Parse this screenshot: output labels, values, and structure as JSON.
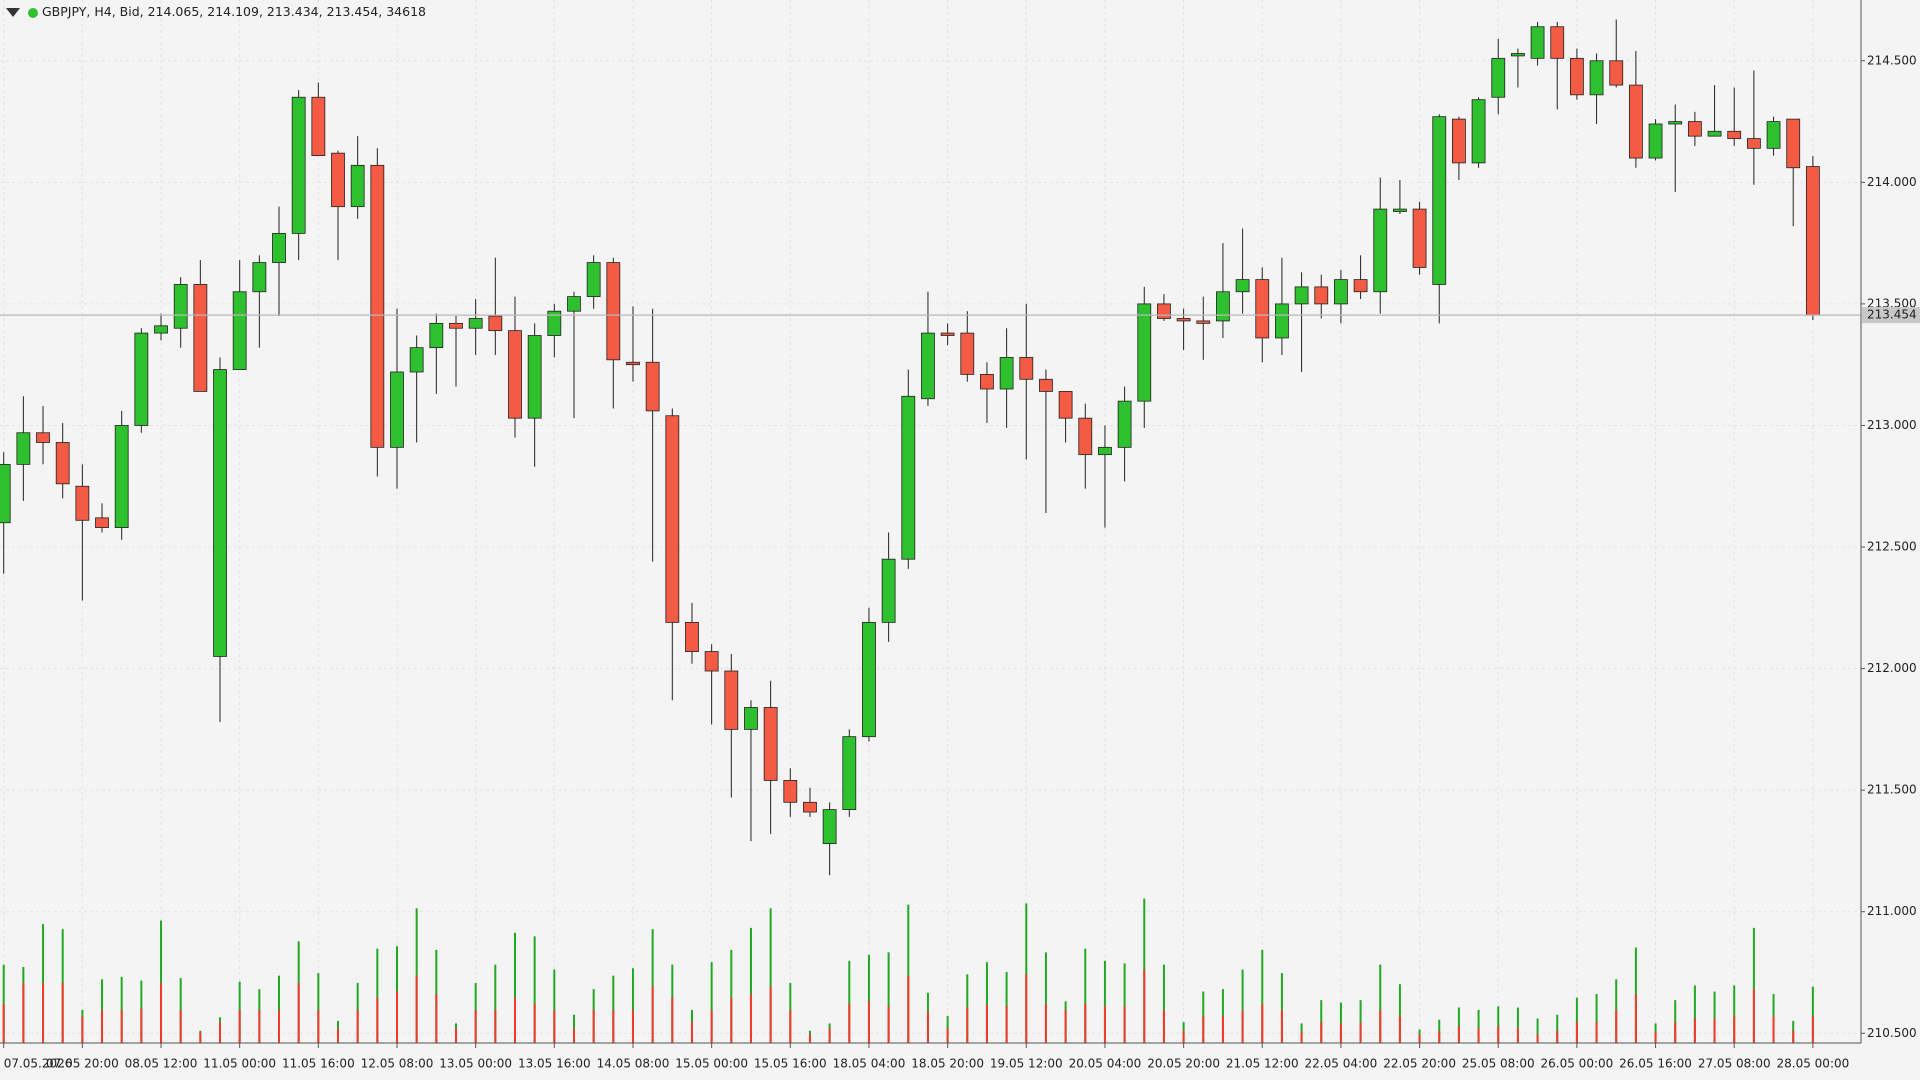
{
  "chart_data": {
    "type": "candlestick",
    "symbol": "GBPJPY",
    "timeframe": "H4",
    "price_type": "Bid",
    "last_volume": 34618,
    "up_color": "#2fc02f",
    "down_color": "#f45b45",
    "grid": true,
    "ylim": [
      210.46,
      214.75
    ],
    "yticks": [
      {
        "value": 210.5,
        "label": "210.500"
      },
      {
        "value": 211.0,
        "label": "211.000"
      },
      {
        "value": 211.5,
        "label": "211.500"
      },
      {
        "value": 212.0,
        "label": "212.000"
      },
      {
        "value": 212.5,
        "label": "212.500"
      },
      {
        "value": 213.0,
        "label": "213.000"
      },
      {
        "value": 213.5,
        "label": "213.500"
      },
      {
        "value": 214.0,
        "label": "214.000"
      },
      {
        "value": 214.5,
        "label": "214.500"
      }
    ],
    "categories": [
      "07.05.2026",
      null,
      null,
      null,
      "07.05 20:00",
      null,
      null,
      null,
      "08.05 12:00",
      null,
      null,
      null,
      "11.05 00:00",
      null,
      null,
      null,
      "11.05 16:00",
      null,
      null,
      null,
      "12.05 08:00",
      null,
      null,
      null,
      "13.05 00:00",
      null,
      null,
      null,
      "13.05 16:00",
      null,
      null,
      null,
      "14.05 08:00",
      null,
      null,
      null,
      "15.05 00:00",
      null,
      null,
      null,
      "15.05 16:00",
      null,
      null,
      null,
      "18.05 04:00",
      null,
      null,
      null,
      "18.05 20:00",
      null,
      null,
      null,
      "19.05 12:00",
      null,
      null,
      null,
      "20.05 04:00",
      null,
      null,
      null,
      "20.05 20:00",
      null,
      null,
      null,
      "21.05 12:00",
      null,
      null,
      null,
      "22.05 04:00",
      null,
      null,
      null,
      "22.05 20:00",
      null,
      null,
      null,
      "25.05 08:00",
      null,
      null,
      null,
      "26.05 00:00",
      null,
      null,
      null,
      "26.05 16:00",
      null,
      null,
      null,
      "27.05 08:00",
      null,
      null,
      null,
      "28.05 00:00"
    ],
    "open": [
      212.6,
      212.84,
      212.97,
      212.93,
      212.75,
      212.62,
      212.58,
      213.0,
      213.38,
      213.4,
      213.58,
      212.05,
      213.23,
      213.55,
      213.67,
      213.79,
      214.35,
      214.12,
      213.9,
      214.07,
      212.91,
      213.22,
      213.32,
      213.42,
      213.4,
      213.45,
      213.39,
      213.03,
      213.37,
      213.47,
      213.53,
      213.67,
      213.26,
      213.26,
      213.04,
      212.19,
      212.07,
      211.99,
      211.75,
      211.84,
      211.54,
      211.45,
      211.28,
      211.42,
      211.72,
      212.19,
      212.45,
      213.11,
      213.38,
      213.38,
      213.21,
      213.15,
      213.28,
      213.19,
      213.14,
      213.03,
      212.88,
      212.91,
      213.1,
      213.5,
      213.44,
      213.43,
      213.43,
      213.55,
      213.6,
      213.36,
      213.5,
      213.57,
      213.5,
      213.6,
      213.55,
      213.88,
      213.89,
      213.58,
      214.26,
      214.08,
      214.35,
      214.52,
      214.51,
      214.64,
      214.51,
      214.36,
      214.5,
      214.4,
      214.1,
      214.24,
      214.25,
      214.19,
      214.21,
      214.18,
      214.14,
      214.26,
      214.065
    ],
    "high": [
      212.89,
      213.12,
      213.08,
      213.01,
      212.84,
      212.68,
      213.06,
      213.4,
      213.46,
      213.61,
      213.68,
      213.28,
      213.68,
      213.7,
      213.9,
      214.38,
      214.41,
      214.13,
      214.19,
      214.14,
      213.48,
      213.37,
      213.46,
      213.45,
      213.52,
      213.69,
      213.53,
      213.42,
      213.5,
      213.55,
      213.7,
      213.69,
      213.49,
      213.48,
      213.07,
      212.27,
      212.1,
      212.06,
      211.87,
      211.95,
      211.59,
      211.51,
      211.45,
      211.75,
      212.25,
      212.56,
      213.23,
      213.55,
      213.42,
      213.47,
      213.26,
      213.4,
      213.5,
      213.23,
      213.14,
      213.09,
      213.0,
      213.16,
      213.57,
      213.54,
      213.48,
      213.53,
      213.75,
      213.81,
      213.65,
      213.69,
      213.63,
      213.62,
      213.64,
      213.7,
      214.02,
      214.01,
      213.92,
      214.28,
      214.27,
      214.35,
      214.59,
      214.55,
      214.66,
      214.66,
      214.55,
      214.53,
      214.67,
      214.54,
      214.26,
      214.32,
      214.29,
      214.4,
      214.39,
      214.46,
      214.27,
      214.26,
      214.109
    ],
    "low": [
      212.39,
      212.69,
      212.84,
      212.7,
      212.28,
      212.56,
      212.53,
      212.97,
      213.35,
      213.32,
      213.14,
      211.78,
      213.23,
      213.32,
      213.45,
      213.68,
      214.11,
      213.68,
      213.85,
      212.79,
      212.74,
      212.93,
      213.13,
      213.16,
      213.29,
      213.29,
      212.95,
      212.83,
      213.28,
      213.03,
      213.48,
      213.07,
      213.18,
      212.44,
      211.87,
      212.02,
      211.77,
      211.47,
      211.29,
      211.32,
      211.39,
      211.39,
      211.15,
      211.39,
      211.7,
      212.11,
      212.41,
      213.08,
      213.33,
      213.18,
      213.01,
      212.99,
      212.86,
      212.64,
      212.93,
      212.74,
      212.58,
      212.77,
      212.99,
      213.43,
      213.31,
      213.27,
      213.36,
      213.46,
      213.26,
      213.29,
      213.22,
      213.44,
      213.42,
      213.52,
      213.46,
      213.87,
      213.62,
      213.42,
      214.01,
      214.06,
      214.28,
      214.39,
      214.48,
      214.3,
      214.34,
      214.24,
      214.39,
      214.06,
      214.09,
      213.96,
      214.15,
      214.19,
      214.15,
      213.99,
      214.11,
      213.82,
      213.434
    ],
    "close": [
      212.84,
      212.97,
      212.93,
      212.76,
      212.61,
      212.58,
      213.0,
      213.38,
      213.41,
      213.58,
      213.14,
      213.23,
      213.55,
      213.67,
      213.79,
      214.35,
      214.11,
      213.9,
      214.07,
      212.91,
      213.22,
      213.32,
      213.42,
      213.4,
      213.44,
      213.39,
      213.03,
      213.37,
      213.47,
      213.53,
      213.67,
      213.27,
      213.25,
      213.06,
      212.19,
      212.07,
      211.99,
      211.75,
      211.84,
      211.54,
      211.45,
      211.41,
      211.42,
      211.72,
      212.19,
      212.45,
      213.12,
      213.38,
      213.37,
      213.21,
      213.15,
      213.28,
      213.19,
      213.14,
      213.03,
      212.88,
      212.91,
      213.1,
      213.5,
      213.44,
      213.43,
      213.42,
      213.55,
      213.6,
      213.36,
      213.5,
      213.57,
      213.5,
      213.6,
      213.55,
      213.89,
      213.89,
      213.65,
      214.27,
      214.08,
      214.34,
      214.51,
      214.53,
      214.64,
      214.51,
      214.36,
      214.5,
      214.4,
      214.1,
      214.24,
      214.25,
      214.19,
      214.21,
      214.18,
      214.14,
      214.25,
      214.06,
      213.454
    ],
    "volume_lim": [
      0,
      120
    ],
    "volume_series": [
      {
        "color": "#23a823",
        "values": [
          64,
          62,
          97,
          93,
          27,
          52,
          54,
          51,
          100,
          53,
          10,
          21,
          50,
          44,
          55,
          83,
          57,
          18,
          49,
          77,
          79,
          110,
          76,
          16,
          49,
          64,
          90,
          87,
          60,
          23,
          44,
          55,
          61,
          93,
          64,
          27,
          66,
          76,
          94,
          110,
          49,
          10,
          16,
          67,
          72,
          74,
          113,
          41,
          22,
          56,
          66,
          58,
          114,
          74,
          34,
          77,
          67,
          65,
          118,
          64,
          17,
          42,
          44,
          60,
          76,
          57,
          16,
          35,
          33,
          35,
          64,
          48,
          11,
          19,
          29,
          27,
          30,
          29,
          20,
          23,
          37,
          40,
          52,
          78,
          16,
          35,
          47,
          42,
          47,
          94,
          40,
          18,
          46
        ]
      },
      {
        "color": "#f03a2e",
        "values": [
          32,
          49,
          49,
          49,
          22,
          27,
          27,
          28,
          49,
          27,
          9,
          17,
          27,
          27,
          27,
          49,
          27,
          12,
          27,
          37,
          42,
          55,
          40,
          12,
          27,
          27,
          37,
          32,
          27,
          12,
          27,
          27,
          27,
          46,
          37,
          17,
          27,
          37,
          40,
          46,
          27,
          7,
          12,
          32,
          34,
          30,
          55,
          26,
          12,
          29,
          31,
          30,
          56,
          32,
          27,
          32,
          30,
          30,
          60,
          27,
          10,
          22,
          22,
          27,
          32,
          27,
          9,
          17,
          16,
          17,
          27,
          22,
          7,
          10,
          14,
          12,
          14,
          12,
          7,
          10,
          17,
          17,
          27,
          40,
          9,
          17,
          20,
          20,
          22,
          44,
          22,
          10,
          22
        ]
      }
    ]
  }
}
